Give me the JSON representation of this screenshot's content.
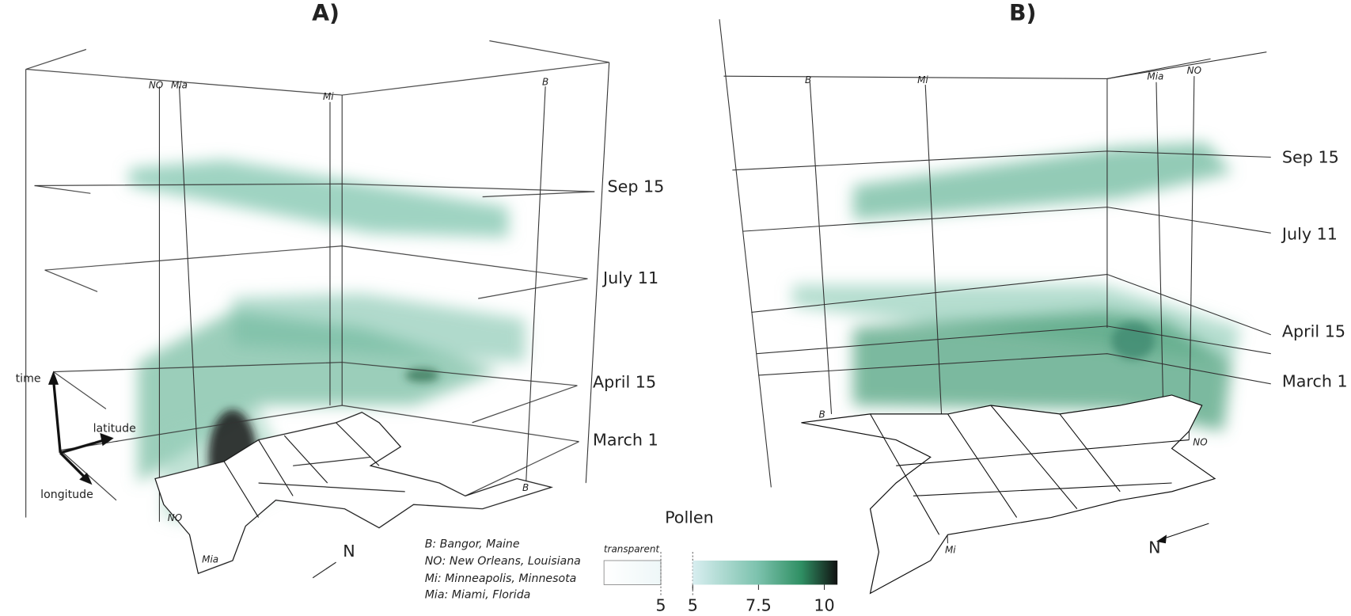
{
  "panels": [
    {
      "title": "A)",
      "dates": [
        "Sep 15",
        "July 11",
        "April 15",
        "March 1"
      ],
      "top_cities": [
        "NO",
        "Mia",
        "Mi",
        "B"
      ],
      "map_cities": [
        "NO",
        "Mia",
        "B"
      ],
      "axes": {
        "time": "time",
        "latitude": "latitude",
        "longitude": "longitude"
      },
      "north": "N",
      "legend": [
        "B: Bangor, Maine",
        "NO: New Orleans, Louisiana",
        "Mi: Minneapolis, Minnesota",
        "Mia: Miami, Florida"
      ]
    },
    {
      "title": "B)",
      "dates": [
        "Sep 15",
        "July 11",
        "April 15",
        "March 1"
      ],
      "top_cities": [
        "B",
        "Mi",
        "Mia",
        "NO"
      ],
      "map_cities": [
        "B",
        "NO",
        "Mi"
      ],
      "north": "N"
    }
  ],
  "colorbar": {
    "title": "Pollen",
    "transparent_segment": {
      "label": "transparent",
      "ticks": [
        5
      ]
    },
    "color_segment": {
      "lim": [
        5,
        10.5
      ],
      "ticks": [
        5,
        7.5,
        10
      ]
    }
  }
}
